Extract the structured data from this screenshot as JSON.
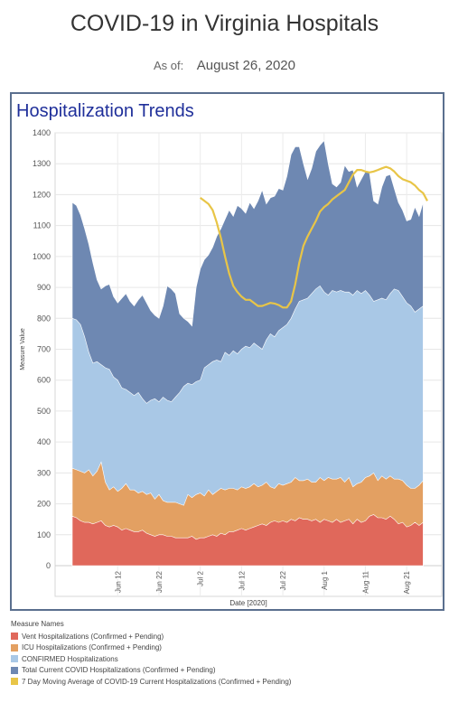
{
  "header": {
    "title": "COVID-19 in Virginia Hospitals",
    "as_of_label": "As of:",
    "as_of_value": "August 26, 2020"
  },
  "panel": {
    "title": "Hospitalization Trends"
  },
  "legend": {
    "title": "Measure Names",
    "items": [
      {
        "label": "Vent Hospitalizations (Confirmed + Pending)",
        "color": "#e0685b"
      },
      {
        "label": "ICU Hospitalizations (Confirmed + Pending)",
        "color": "#e3a062"
      },
      {
        "label": "CONFIRMED Hospitalizations",
        "color": "#a9c8e6"
      },
      {
        "label": "Total Current COVID Hospitalizations (Confirmed + Pending)",
        "color": "#6e88b2"
      },
      {
        "label": "7 Day Moving Average of COVID-19 Current Hospitalizations (Confirmed + Pending)",
        "color": "#e8c547"
      }
    ]
  },
  "chart_data": {
    "type": "area",
    "xlabel": "Date [2020]",
    "ylabel": "Measure Value",
    "ylim": [
      0,
      1400
    ],
    "yticks": [
      0,
      100,
      200,
      300,
      400,
      500,
      600,
      700,
      800,
      900,
      1000,
      1100,
      1200,
      1300,
      1400
    ],
    "xticks": [
      "Jun 12",
      "Jun 22",
      "Jul 2",
      "Jul 12",
      "Jul 22",
      "Aug 1",
      "Aug 11",
      "Aug 21"
    ],
    "x_start": "2020-06-01",
    "x_end": "2020-08-26",
    "grid": true,
    "series": [
      {
        "name": "Total Current COVID Hospitalizations (Confirmed + Pending)",
        "color": "#6e88b2",
        "kind": "area",
        "values": [
          1175,
          1165,
          1135,
          1090,
          1040,
          980,
          925,
          895,
          905,
          910,
          870,
          850,
          865,
          880,
          855,
          840,
          860,
          875,
          850,
          825,
          810,
          800,
          840,
          905,
          895,
          880,
          815,
          800,
          790,
          775,
          900,
          960,
          990,
          1005,
          1030,
          1065,
          1090,
          1120,
          1150,
          1130,
          1165,
          1155,
          1140,
          1175,
          1155,
          1180,
          1215,
          1170,
          1190,
          1195,
          1220,
          1215,
          1260,
          1330,
          1355,
          1355,
          1300,
          1250,
          1285,
          1340,
          1360,
          1375,
          1300,
          1235,
          1225,
          1240,
          1295,
          1275,
          1280,
          1225,
          1250,
          1275,
          1270,
          1180,
          1170,
          1225,
          1260,
          1265,
          1220,
          1175,
          1150,
          1115,
          1120,
          1160,
          1130,
          1175
        ]
      },
      {
        "name": "CONFIRMED Hospitalizations",
        "color": "#a9c8e6",
        "kind": "area",
        "values": [
          800,
          795,
          780,
          740,
          690,
          655,
          660,
          650,
          640,
          635,
          610,
          600,
          575,
          570,
          560,
          550,
          560,
          540,
          525,
          535,
          540,
          530,
          545,
          535,
          530,
          545,
          560,
          580,
          590,
          585,
          595,
          600,
          640,
          650,
          660,
          665,
          660,
          690,
          680,
          695,
          685,
          700,
          710,
          705,
          720,
          710,
          700,
          730,
          750,
          740,
          760,
          770,
          780,
          800,
          830,
          855,
          860,
          865,
          880,
          895,
          905,
          885,
          875,
          890,
          885,
          890,
          885,
          885,
          875,
          890,
          880,
          890,
          875,
          855,
          860,
          865,
          860,
          880,
          895,
          890,
          870,
          850,
          840,
          820,
          830,
          840
        ]
      },
      {
        "name": "ICU Hospitalizations (Confirmed + Pending)",
        "color": "#e3a062",
        "kind": "area",
        "values": [
          315,
          310,
          305,
          300,
          310,
          290,
          305,
          335,
          270,
          245,
          255,
          240,
          250,
          265,
          245,
          245,
          235,
          240,
          230,
          235,
          215,
          230,
          210,
          205,
          205,
          205,
          200,
          195,
          230,
          220,
          230,
          235,
          225,
          245,
          230,
          240,
          250,
          245,
          250,
          250,
          245,
          255,
          250,
          255,
          265,
          255,
          260,
          270,
          255,
          250,
          265,
          260,
          265,
          270,
          285,
          275,
          275,
          280,
          270,
          270,
          285,
          275,
          285,
          280,
          280,
          285,
          270,
          285,
          255,
          265,
          270,
          285,
          290,
          300,
          275,
          290,
          280,
          290,
          280,
          280,
          275,
          260,
          250,
          250,
          260,
          275
        ]
      },
      {
        "name": "Vent Hospitalizations (Confirmed + Pending)",
        "color": "#e0685b",
        "kind": "area",
        "values": [
          160,
          155,
          145,
          140,
          140,
          135,
          140,
          145,
          130,
          125,
          130,
          125,
          115,
          120,
          115,
          110,
          110,
          115,
          105,
          100,
          95,
          100,
          100,
          95,
          95,
          90,
          90,
          90,
          90,
          95,
          85,
          90,
          90,
          95,
          100,
          95,
          105,
          100,
          110,
          110,
          115,
          120,
          115,
          120,
          125,
          130,
          135,
          130,
          140,
          145,
          140,
          145,
          140,
          150,
          145,
          155,
          150,
          150,
          145,
          150,
          140,
          150,
          145,
          140,
          150,
          140,
          145,
          150,
          135,
          150,
          140,
          145,
          160,
          165,
          155,
          155,
          150,
          160,
          150,
          135,
          140,
          125,
          130,
          140,
          130,
          140
        ]
      },
      {
        "name": "7 Day Moving Average of COVID-19 Current Hospitalizations (Confirmed + Pending)",
        "color": "#e8c547",
        "kind": "line",
        "values": [
          1190,
          1180,
          1170,
          1150,
          1110,
          1060,
          1000,
          945,
          905,
          885,
          870,
          860,
          860,
          850,
          840,
          840,
          845,
          850,
          848,
          843,
          835,
          835,
          855,
          910,
          980,
          1035,
          1065,
          1090,
          1115,
          1145,
          1160,
          1170,
          1185,
          1195,
          1205,
          1215,
          1240,
          1265,
          1280,
          1280,
          1275,
          1272,
          1275,
          1280,
          1285,
          1290,
          1285,
          1275,
          1260,
          1250,
          1245,
          1240,
          1230,
          1215,
          1205,
          1180
        ]
      }
    ]
  }
}
